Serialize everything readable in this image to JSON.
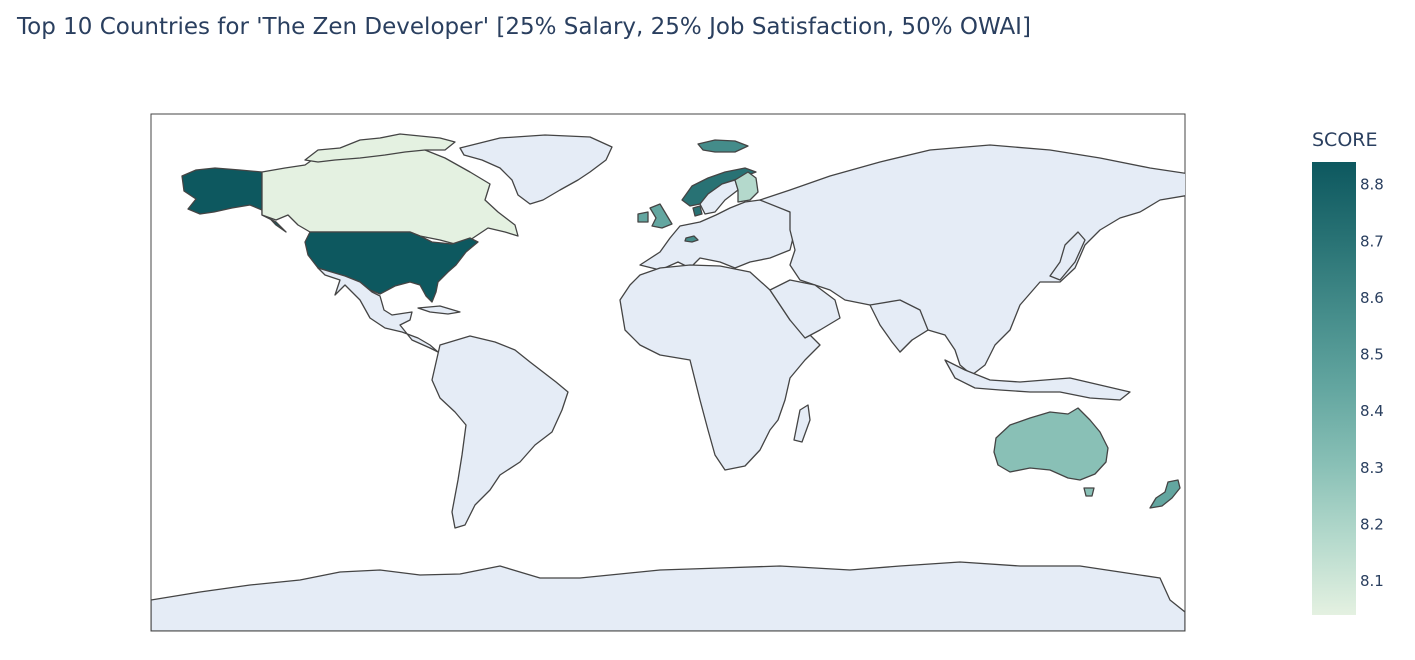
{
  "title": "Top 10 Countries for 'The Zen Developer' [25% Salary, 25% Job Satisfaction, 50% OWAI]",
  "chart_data": {
    "type": "choropleth",
    "projection": "equirectangular",
    "locations": [
      {
        "country": "United States",
        "value": 8.84
      },
      {
        "country": "Norway",
        "value": 8.7
      },
      {
        "country": "Denmark",
        "value": 8.7
      },
      {
        "country": "Iceland",
        "value": 8.62
      },
      {
        "country": "Switzerland",
        "value": 8.6
      },
      {
        "country": "United Kingdom",
        "value": 8.5
      },
      {
        "country": "New Zealand",
        "value": 8.55
      },
      {
        "country": "Australia",
        "value": 8.42
      },
      {
        "country": "Finland",
        "value": 8.22
      },
      {
        "country": "Canada",
        "value": 8.06
      }
    ],
    "colorbar": {
      "title": "SCORE",
      "range": [
        8.04,
        8.84
      ],
      "ticks": [
        8.1,
        8.2,
        8.3,
        8.4,
        8.5,
        8.6,
        8.7,
        8.8
      ],
      "colorscale": [
        "#e4f1e1",
        "#b4d9cc",
        "#89c0b6",
        "#63a6a0",
        "#448c8a",
        "#287274",
        "#0d585f"
      ]
    },
    "land_color": "#e5ecf6",
    "border_color": "#444444"
  }
}
